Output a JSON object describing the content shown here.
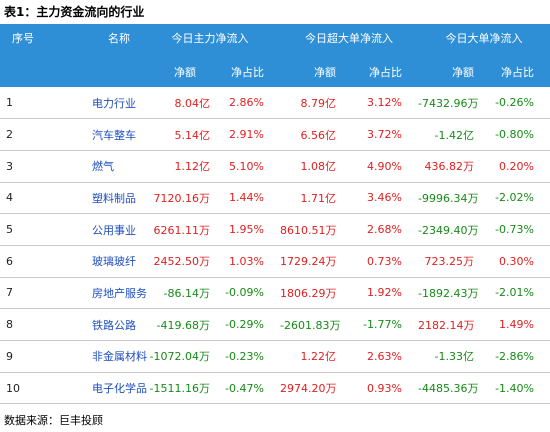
{
  "title": "表1：主力资金流向的行业",
  "header": {
    "rank": "序号",
    "name": "名称",
    "groups": [
      "今日主力净流入",
      "今日超大单净流入",
      "今日大单净流入"
    ],
    "net": "净额",
    "ratio": "净占比"
  },
  "rows": [
    {
      "rank": "1",
      "name": "电力行业",
      "v": [
        "8.04亿",
        "2.86%",
        "8.79亿",
        "3.12%",
        "-7432.96万",
        "-0.26%"
      ]
    },
    {
      "rank": "2",
      "name": "汽车整车",
      "v": [
        "5.14亿",
        "2.91%",
        "6.56亿",
        "3.72%",
        "-1.42亿",
        "-0.80%"
      ]
    },
    {
      "rank": "3",
      "name": "燃气",
      "v": [
        "1.12亿",
        "5.10%",
        "1.08亿",
        "4.90%",
        "436.82万",
        "0.20%"
      ]
    },
    {
      "rank": "4",
      "name": "塑料制品",
      "v": [
        "7120.16万",
        "1.44%",
        "1.71亿",
        "3.46%",
        "-9996.34万",
        "-2.02%"
      ]
    },
    {
      "rank": "5",
      "name": "公用事业",
      "v": [
        "6261.11万",
        "1.95%",
        "8610.51万",
        "2.68%",
        "-2349.40万",
        "-0.73%"
      ]
    },
    {
      "rank": "6",
      "name": "玻璃玻纤",
      "v": [
        "2452.50万",
        "1.03%",
        "1729.24万",
        "0.73%",
        "723.25万",
        "0.30%"
      ]
    },
    {
      "rank": "7",
      "name": "房地产服务",
      "v": [
        "-86.14万",
        "-0.09%",
        "1806.29万",
        "1.92%",
        "-1892.43万",
        "-2.01%"
      ]
    },
    {
      "rank": "8",
      "name": "铁路公路",
      "v": [
        "-419.68万",
        "-0.29%",
        "-2601.83万",
        "-1.77%",
        "2182.14万",
        "1.49%"
      ]
    },
    {
      "rank": "9",
      "name": "非金属材料",
      "v": [
        "-1072.04万",
        "-0.23%",
        "1.22亿",
        "2.63%",
        "-1.33亿",
        "-2.86%"
      ]
    },
    {
      "rank": "10",
      "name": "电子化学品",
      "v": [
        "-1511.16万",
        "-0.47%",
        "2974.20万",
        "0.93%",
        "-4485.36万",
        "-1.40%"
      ]
    }
  ],
  "colors": {
    "header_bg": "#2e8fd6",
    "positive": "#e02020",
    "negative": "#178a17",
    "name_link": "#1f4fbf"
  },
  "source": "数据来源：巨丰投顾"
}
